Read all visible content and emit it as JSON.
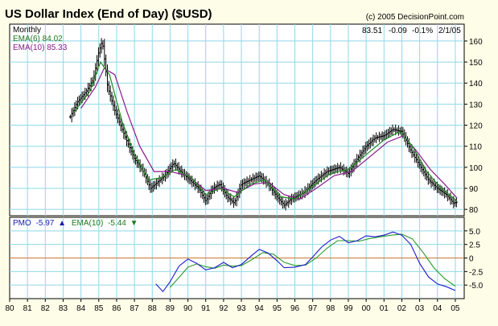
{
  "chart_data": [
    {
      "type": "ohlc",
      "title": "US Dollar Index (End of Day) ($USD)",
      "copyright": "(c) 2005 DecisionPoint.com",
      "periodicity": "Monthly",
      "last_quote": {
        "value": "83.51",
        "change": "-0.09",
        "pct": "-0.1%",
        "date": "2/1/05"
      },
      "legend": [
        {
          "label": "EMA(6) 84.02",
          "color": "#1a7a1a"
        },
        {
          "label": "EMA(10) 85.33",
          "color": "#8a1a8a"
        }
      ],
      "ylim": [
        77,
        168
      ],
      "y_ticks": [
        80,
        90,
        100,
        110,
        120,
        130,
        140,
        150,
        160
      ],
      "price_color": "#000000",
      "ema6_color": "#228822",
      "ema10_color": "#8a1a8a",
      "price_anchors": [
        [
          83.4,
          124
        ],
        [
          83.8,
          131
        ],
        [
          84.3,
          136
        ],
        [
          84.7,
          142
        ],
        [
          85.0,
          155
        ],
        [
          85.2,
          160
        ],
        [
          85.5,
          138
        ],
        [
          85.9,
          127
        ],
        [
          86.5,
          114
        ],
        [
          87.0,
          104
        ],
        [
          87.5,
          98
        ],
        [
          87.9,
          90
        ],
        [
          88.3,
          93
        ],
        [
          88.7,
          96
        ],
        [
          89.2,
          102
        ],
        [
          89.6,
          98
        ],
        [
          90.1,
          94
        ],
        [
          90.6,
          90
        ],
        [
          91.0,
          84
        ],
        [
          91.4,
          90
        ],
        [
          91.8,
          92
        ],
        [
          92.2,
          86
        ],
        [
          92.6,
          83
        ],
        [
          93.0,
          92
        ],
        [
          93.5,
          94
        ],
        [
          94.0,
          96
        ],
        [
          94.5,
          92
        ],
        [
          95.0,
          86
        ],
        [
          95.4,
          82
        ],
        [
          95.8,
          85
        ],
        [
          96.5,
          88
        ],
        [
          97.2,
          94
        ],
        [
          97.8,
          98
        ],
        [
          98.5,
          100
        ],
        [
          99.0,
          97
        ],
        [
          99.5,
          104
        ],
        [
          100.0,
          110
        ],
        [
          100.5,
          114
        ],
        [
          101.0,
          115
        ],
        [
          101.5,
          118
        ],
        [
          102.0,
          117
        ],
        [
          102.5,
          108
        ],
        [
          103.0,
          101
        ],
        [
          103.5,
          94
        ],
        [
          104.0,
          90
        ],
        [
          104.5,
          87
        ],
        [
          104.9,
          83
        ],
        [
          105.1,
          83.5
        ]
      ],
      "ema6_anchors": [
        [
          83.6,
          126
        ],
        [
          84.5,
          136
        ],
        [
          85.1,
          150
        ],
        [
          85.6,
          144
        ],
        [
          86.3,
          122
        ],
        [
          87.0,
          106
        ],
        [
          87.8,
          94
        ],
        [
          88.5,
          95
        ],
        [
          89.3,
          99
        ],
        [
          90.2,
          95
        ],
        [
          91.0,
          87
        ],
        [
          91.8,
          90
        ],
        [
          92.6,
          86
        ],
        [
          93.5,
          92
        ],
        [
          94.3,
          94
        ],
        [
          95.2,
          86
        ],
        [
          96.0,
          85
        ],
        [
          97.0,
          91
        ],
        [
          98.0,
          97
        ],
        [
          99.0,
          99
        ],
        [
          100.0,
          106
        ],
        [
          101.0,
          113
        ],
        [
          101.9,
          117
        ],
        [
          102.6,
          110
        ],
        [
          103.4,
          98
        ],
        [
          104.2,
          90
        ],
        [
          105.1,
          84.02
        ]
      ],
      "ema10_anchors": [
        [
          84.0,
          128
        ],
        [
          84.8,
          138
        ],
        [
          85.3,
          147
        ],
        [
          85.9,
          144
        ],
        [
          86.6,
          126
        ],
        [
          87.3,
          110
        ],
        [
          88.1,
          98
        ],
        [
          89.0,
          98
        ],
        [
          90.0,
          96
        ],
        [
          91.0,
          89
        ],
        [
          92.0,
          90
        ],
        [
          92.8,
          88
        ],
        [
          93.7,
          92
        ],
        [
          94.5,
          93
        ],
        [
          95.4,
          87
        ],
        [
          96.3,
          85
        ],
        [
          97.2,
          90
        ],
        [
          98.2,
          96
        ],
        [
          99.2,
          98
        ],
        [
          100.2,
          105
        ],
        [
          101.2,
          112
        ],
        [
          102.1,
          115
        ],
        [
          102.8,
          108
        ],
        [
          103.6,
          99
        ],
        [
          104.4,
          92
        ],
        [
          105.1,
          85.33
        ]
      ]
    },
    {
      "type": "line",
      "legend": [
        {
          "label": "PMO",
          "value": "-5.97",
          "arrow": "▲",
          "color": "#1a1aaa"
        },
        {
          "label": "EMA(10)",
          "value": "-5.44",
          "arrow": "▼",
          "color": "#1a7a1a"
        }
      ],
      "ylim": [
        -7.5,
        7.5
      ],
      "y_ticks": [
        "5.0",
        "2.5",
        "0",
        "-2.5",
        "-5.0"
      ],
      "zero_line_color": "#c87830",
      "series": [
        {
          "name": "PMO",
          "color": "#1a1acc",
          "points": [
            [
              88.2,
              -4.8
            ],
            [
              88.6,
              -6.2
            ],
            [
              89.0,
              -4.4
            ],
            [
              89.5,
              -1.5
            ],
            [
              90.0,
              -0.2
            ],
            [
              90.5,
              -1.0
            ],
            [
              91.0,
              -2.2
            ],
            [
              91.5,
              -1.8
            ],
            [
              92.0,
              -0.8
            ],
            [
              92.5,
              -1.8
            ],
            [
              93.0,
              -1.2
            ],
            [
              93.6,
              0.5
            ],
            [
              94.0,
              1.6
            ],
            [
              94.5,
              0.9
            ],
            [
              95.0,
              -0.5
            ],
            [
              95.4,
              -1.8
            ],
            [
              96.0,
              -1.7
            ],
            [
              96.6,
              -1.2
            ],
            [
              97.0,
              0.2
            ],
            [
              97.5,
              2.0
            ],
            [
              98.0,
              3.3
            ],
            [
              98.5,
              4.0
            ],
            [
              99.0,
              2.8
            ],
            [
              99.5,
              3.2
            ],
            [
              100.0,
              4.1
            ],
            [
              100.5,
              3.9
            ],
            [
              101.0,
              4.2
            ],
            [
              101.5,
              4.8
            ],
            [
              102.0,
              4.2
            ],
            [
              102.5,
              2.5
            ],
            [
              103.0,
              -1.0
            ],
            [
              103.5,
              -3.5
            ],
            [
              104.0,
              -4.8
            ],
            [
              104.5,
              -5.3
            ],
            [
              105.0,
              -6.0
            ]
          ]
        },
        {
          "name": "EMA(10)",
          "color": "#2a9a2a",
          "points": [
            [
              89.0,
              -5.4
            ],
            [
              89.5,
              -3.6
            ],
            [
              90.0,
              -1.7
            ],
            [
              90.5,
              -1.1
            ],
            [
              91.0,
              -1.6
            ],
            [
              91.5,
              -1.9
            ],
            [
              92.0,
              -1.3
            ],
            [
              92.5,
              -1.5
            ],
            [
              93.0,
              -1.4
            ],
            [
              93.6,
              -0.3
            ],
            [
              94.2,
              1.0
            ],
            [
              94.8,
              0.7
            ],
            [
              95.4,
              -0.8
            ],
            [
              96.0,
              -1.4
            ],
            [
              96.6,
              -1.3
            ],
            [
              97.2,
              0.0
            ],
            [
              97.8,
              1.8
            ],
            [
              98.4,
              3.2
            ],
            [
              99.0,
              3.2
            ],
            [
              99.6,
              3.1
            ],
            [
              100.2,
              3.6
            ],
            [
              100.8,
              3.9
            ],
            [
              101.4,
              4.2
            ],
            [
              102.0,
              4.4
            ],
            [
              102.6,
              3.5
            ],
            [
              103.2,
              1.0
            ],
            [
              103.8,
              -1.8
            ],
            [
              104.4,
              -3.8
            ],
            [
              105.0,
              -5.2
            ]
          ]
        }
      ]
    }
  ],
  "x_axis": {
    "labels": [
      "80",
      "81",
      "82",
      "83",
      "84",
      "85",
      "86",
      "87",
      "88",
      "89",
      "90",
      "91",
      "92",
      "93",
      "94",
      "95",
      "96",
      "97",
      "98",
      "99",
      "00",
      "01",
      "02",
      "03",
      "04",
      "05"
    ],
    "range": [
      80,
      105.5
    ]
  },
  "colors": {
    "background": "#fefee8",
    "grid": "#8ed8e8",
    "border": "#000000"
  }
}
